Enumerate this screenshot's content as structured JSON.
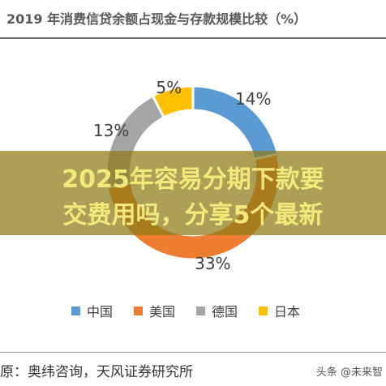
{
  "chart_data": {
    "type": "pie",
    "style": "donut",
    "title": "2019 年消费信贷余额占现金与存款规模比较（%）",
    "categories": [
      "中国",
      "美国",
      "德国",
      "日本"
    ],
    "values": [
      14,
      33,
      13,
      5
    ],
    "labels": [
      "14%",
      "33%",
      "13%",
      "5%"
    ],
    "colors": [
      "#5B9BD5",
      "#ED7D31",
      "#A5A5A5",
      "#FFC000"
    ],
    "legend_placement": "bottom",
    "legend_labels": [
      "中国",
      "美国",
      "德国",
      "日本"
    ]
  },
  "overlay": {
    "line1": "2025年容易分期下款要",
    "line2": "交费用吗，分享5个最新"
  },
  "footer": {
    "source": "原：奥纬咨询，天风证券研究所",
    "watermark": "头条 @未来智"
  }
}
